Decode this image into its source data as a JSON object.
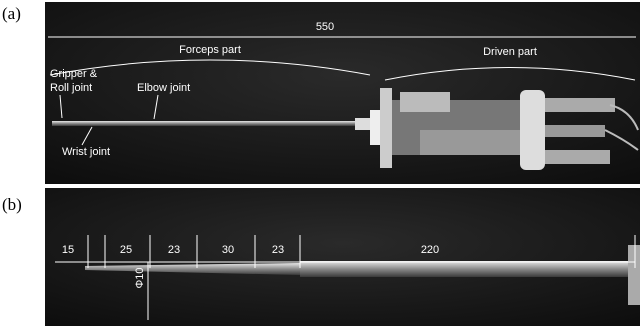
{
  "panel_a": {
    "label": "(a)",
    "overall_length": "550",
    "forceps_part": "Forceps part",
    "driven_part": "Driven part",
    "gripper_label": [
      "Gripper &",
      "Roll joint"
    ],
    "elbow_label": "Elbow joint",
    "wrist_label": "Wrist joint"
  },
  "panel_b": {
    "label": "(b)",
    "segments": [
      "15",
      "25",
      "23",
      "30",
      "23",
      "220"
    ],
    "diameter": "Φ10"
  }
}
